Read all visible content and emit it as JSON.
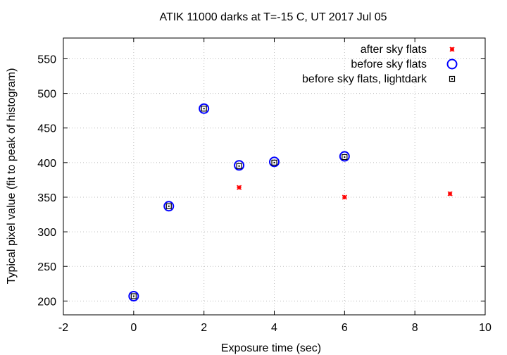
{
  "chart_data": {
    "type": "scatter",
    "title": "ATIK 11000 darks at T=-15 C, UT 2017 Jul 05",
    "xlabel": "Exposure time (sec)",
    "ylabel": "Typical pixel value (fit to peak of histogram)",
    "xlim": [
      -2,
      10
    ],
    "ylim": [
      180,
      580
    ],
    "xticks": [
      -2,
      0,
      2,
      4,
      6,
      8,
      10
    ],
    "yticks": [
      200,
      250,
      300,
      350,
      400,
      450,
      500,
      550
    ],
    "grid": true,
    "legend_position": "top-right",
    "series": [
      {
        "name": "after sky flats",
        "marker": "star",
        "color": "#ff0000",
        "points": [
          [
            3,
            364
          ],
          [
            6,
            350
          ],
          [
            9,
            355
          ]
        ]
      },
      {
        "name": "before sky flats",
        "marker": "circle",
        "color": "#0000ff",
        "points": [
          [
            0,
            207
          ],
          [
            1,
            337
          ],
          [
            2,
            478
          ],
          [
            3,
            396
          ],
          [
            4,
            401
          ],
          [
            6,
            409
          ]
        ]
      },
      {
        "name": "before sky flats, lightdark",
        "marker": "square",
        "color": "#000000",
        "points": [
          [
            0,
            207
          ],
          [
            1,
            337
          ],
          [
            2,
            478
          ],
          [
            3,
            395
          ],
          [
            4,
            400
          ],
          [
            6,
            408
          ]
        ]
      }
    ]
  }
}
